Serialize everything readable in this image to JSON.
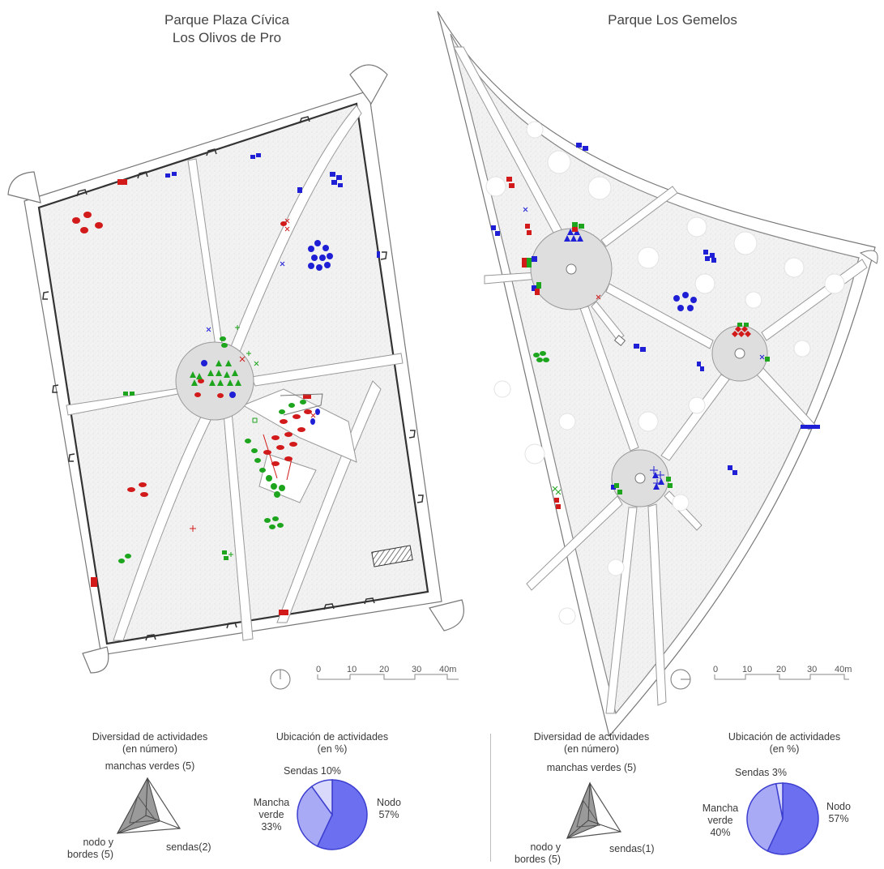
{
  "maps": [
    {
      "title_line1": "Parque Plaza Cívica",
      "title_line2": "Los Olivos de Pro",
      "scale_labels": [
        "0",
        "10",
        "20",
        "30",
        "40m"
      ],
      "radar": {
        "title_line1": "Diversidad de actividades",
        "title_line2": "(en número)",
        "axis_top": "manchas verdes (5)",
        "axis_left_line1": "nodo y",
        "axis_left_line2": "bordes (5)",
        "axis_right": "sendas(2)",
        "values": {
          "manchas_verdes": 5,
          "nodo_y_bordes": 5,
          "sendas": 2
        }
      },
      "pie": {
        "title_line1": "Ubicación de actividades",
        "title_line2": "(en %)",
        "label_sendas": "Sendas 10%",
        "label_mancha_line1": "Mancha",
        "label_mancha_line2": "verde",
        "label_mancha_line3": "33%",
        "label_nodo_line1": "Nodo",
        "label_nodo_line2": "57%",
        "slices": [
          {
            "name": "Nodo",
            "percent": 57,
            "color": "#6b6ff0"
          },
          {
            "name": "Mancha verde",
            "percent": 33,
            "color": "#a9aaf5"
          },
          {
            "name": "Sendas",
            "percent": 10,
            "color": "#d8d9fb"
          }
        ]
      }
    },
    {
      "title_line1": "Parque Los Gemelos",
      "scale_labels": [
        "0",
        "10",
        "20",
        "30",
        "40m"
      ],
      "radar": {
        "title_line1": "Diversidad de actividades",
        "title_line2": "(en número)",
        "axis_top": "manchas verdes (5)",
        "axis_left_line1": "nodo y",
        "axis_left_line2": "bordes (5)",
        "axis_right": "sendas(1)",
        "values": {
          "manchas_verdes": 5,
          "nodo_y_bordes": 5,
          "sendas": 1
        }
      },
      "pie": {
        "title_line1": "Ubicación de actividades",
        "title_line2": "(en %)",
        "label_sendas": "Sendas 3%",
        "label_mancha_line1": "Mancha",
        "label_mancha_line2": "verde",
        "label_mancha_line3": "40%",
        "label_nodo_line1": "Nodo",
        "label_nodo_line2": "57%",
        "slices": [
          {
            "name": "Nodo",
            "percent": 57,
            "color": "#6b6ff0"
          },
          {
            "name": "Mancha verde",
            "percent": 40,
            "color": "#a9aaf5"
          },
          {
            "name": "Sendas",
            "percent": 3,
            "color": "#d8d9fb"
          }
        ]
      }
    }
  ],
  "colors": {
    "blue_activity": "#1f1fd6",
    "red_activity": "#d21a1a",
    "green_activity": "#1ea51e",
    "park_fill": "#f1f1f1",
    "path_fill": "#ffffff",
    "node_fill": "#dedede",
    "outline": "#444444"
  }
}
